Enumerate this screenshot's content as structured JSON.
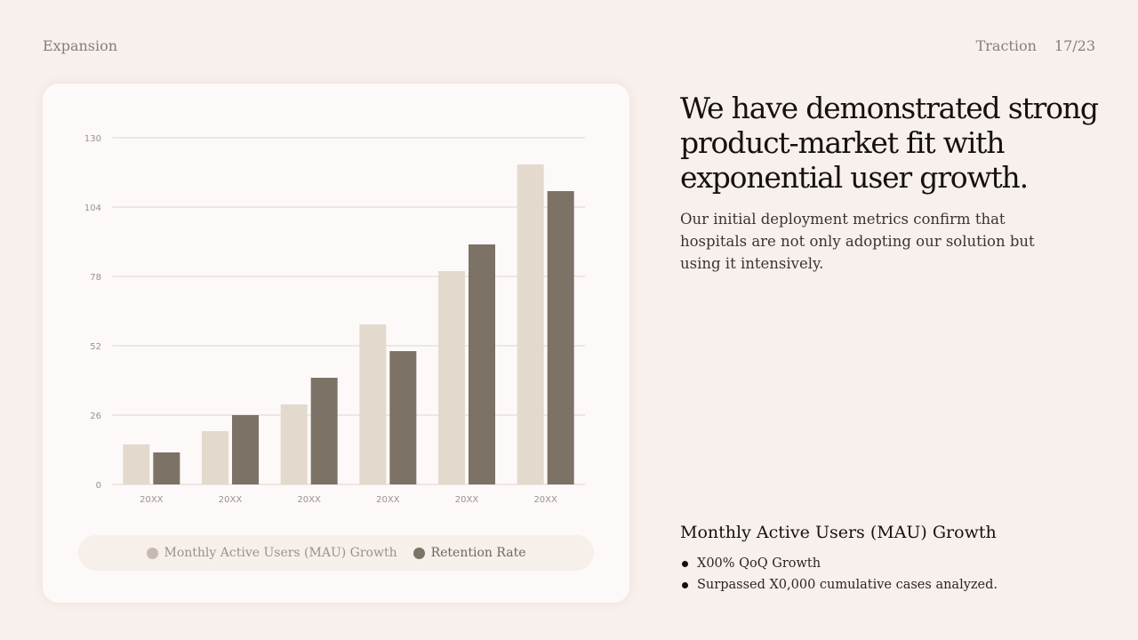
{
  "header": {
    "section": "Expansion",
    "category": "Traction",
    "page": "17/23"
  },
  "headline": "We have demonstrated strong product-market fit with exponential user growth.",
  "subtext": "Our initial deployment metrics confirm that hospitals are not only adopting our solution but using it intensively.",
  "details": {
    "title": "Monthly Active Users (MAU) Growth",
    "bullets": [
      "X00% QoQ Growth",
      "Surpassed X0,000 cumulative cases analyzed."
    ]
  },
  "chart_data": {
    "type": "bar",
    "categories": [
      "20XX",
      "20XX",
      "20XX",
      "20XX",
      "20XX",
      "20XX"
    ],
    "series": [
      {
        "name": "Monthly Active Users (MAU) Growth",
        "values": [
          15,
          20,
          30,
          60,
          80,
          120
        ],
        "color": "#e4d9cd"
      },
      {
        "name": "Retention Rate",
        "values": [
          12,
          26,
          40,
          50,
          90,
          110
        ],
        "color": "#7c7265"
      }
    ],
    "yticks": [
      0,
      26,
      52,
      78,
      104,
      130
    ],
    "ylim": [
      0,
      130
    ],
    "grid": true,
    "legend": "bottom",
    "legend_dot_colors": [
      "#c6bbb0",
      "#7c7265"
    ]
  }
}
